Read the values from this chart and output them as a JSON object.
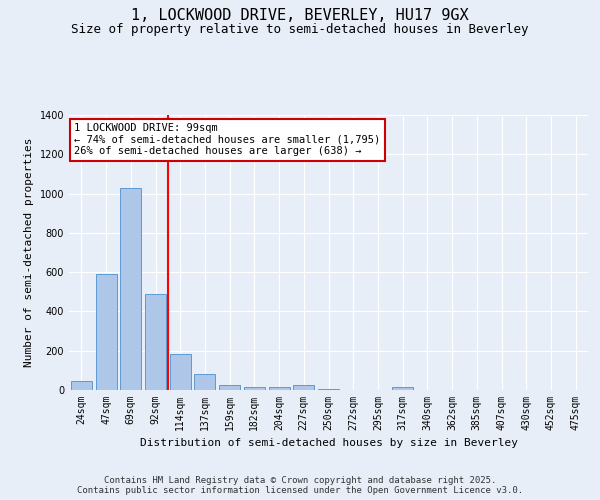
{
  "title_line1": "1, LOCKWOOD DRIVE, BEVERLEY, HU17 9GX",
  "title_line2": "Size of property relative to semi-detached houses in Beverley",
  "xlabel": "Distribution of semi-detached houses by size in Beverley",
  "ylabel": "Number of semi-detached properties",
  "bins": [
    "24sqm",
    "47sqm",
    "69sqm",
    "92sqm",
    "114sqm",
    "137sqm",
    "159sqm",
    "182sqm",
    "204sqm",
    "227sqm",
    "250sqm",
    "272sqm",
    "295sqm",
    "317sqm",
    "340sqm",
    "362sqm",
    "385sqm",
    "407sqm",
    "430sqm",
    "452sqm",
    "475sqm"
  ],
  "values": [
    45,
    590,
    1030,
    490,
    185,
    80,
    28,
    15,
    15,
    25,
    5,
    0,
    0,
    15,
    0,
    0,
    0,
    0,
    0,
    0,
    0
  ],
  "bar_color": "#aec6e8",
  "bar_edge_color": "#5b9bd5",
  "red_line_bin_index": 3,
  "annotation_line1": "1 LOCKWOOD DRIVE: 99sqm",
  "annotation_line2": "← 74% of semi-detached houses are smaller (1,795)",
  "annotation_line3": "26% of semi-detached houses are larger (638) →",
  "annotation_box_color": "#ffffff",
  "annotation_box_edge_color": "#cc0000",
  "ylim": [
    0,
    1400
  ],
  "yticks": [
    0,
    200,
    400,
    600,
    800,
    1000,
    1200,
    1400
  ],
  "bg_color": "#e8eef7",
  "plot_bg_color": "#e8eef7",
  "footer_text": "Contains HM Land Registry data © Crown copyright and database right 2025.\nContains public sector information licensed under the Open Government Licence v3.0.",
  "title_fontsize": 11,
  "subtitle_fontsize": 9,
  "axis_label_fontsize": 8,
  "tick_fontsize": 7,
  "annotation_fontsize": 7.5,
  "footer_fontsize": 6.5
}
